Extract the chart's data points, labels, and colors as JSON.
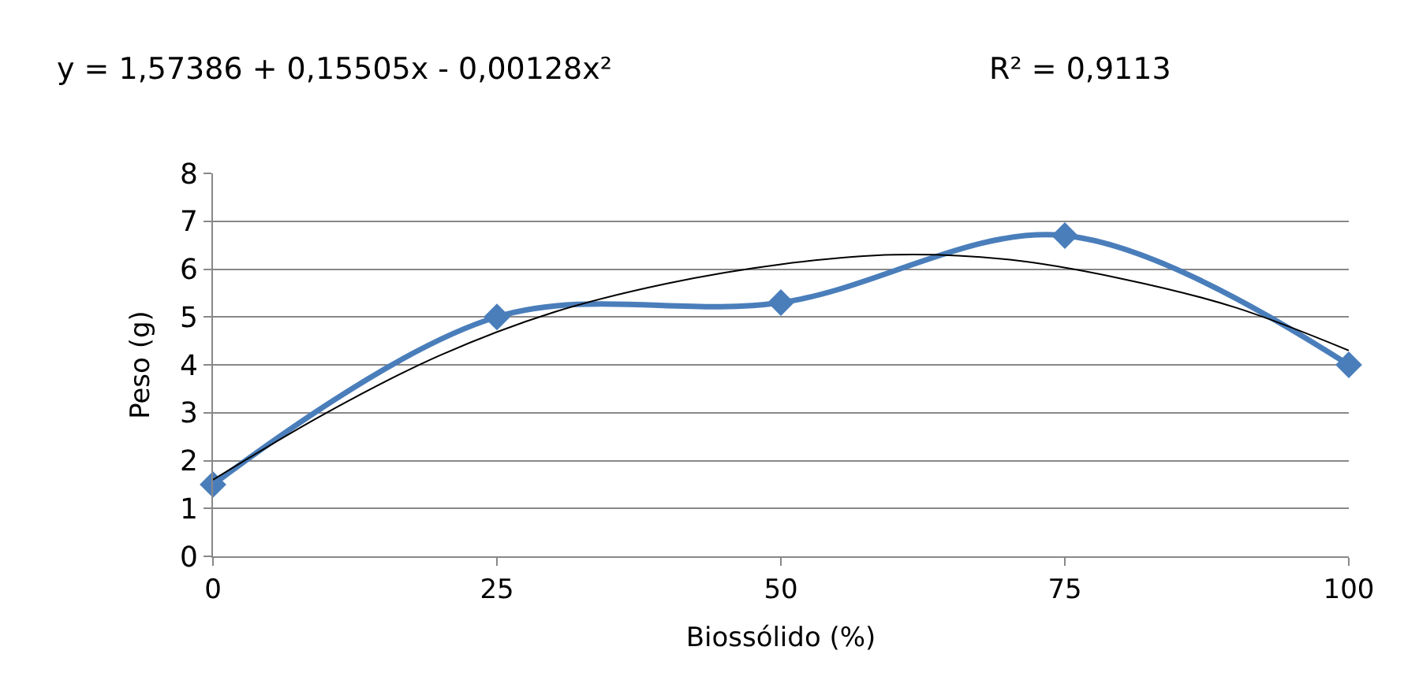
{
  "chart_data": {
    "type": "line",
    "xlabel": "Biossólido (%)",
    "ylabel": "Peso (g)",
    "annotations": [
      "y = 1,57386 + 0,15505x - 0,00128x²",
      "R² = 0,9113"
    ],
    "x": [
      0,
      25,
      50,
      75,
      100
    ],
    "xlim": [
      0,
      100
    ],
    "xticks": [
      0,
      25,
      50,
      75,
      100
    ],
    "ylim": [
      0,
      8
    ],
    "yticks": [
      0,
      1,
      2,
      3,
      4,
      5,
      6,
      7,
      8
    ],
    "grid": "y",
    "marker": "diamond",
    "line_style": "solid",
    "series": [
      {
        "color": "#4a7ebb",
        "values": [
          1.5,
          5.0,
          5.3,
          6.7,
          4.0
        ]
      },
      {
        "type": "line",
        "color": "#000000",
        "marker": "none",
        "x": [
          0,
          10,
          20,
          30,
          40,
          50,
          60,
          70,
          80,
          90,
          100
        ],
        "values": [
          1.6,
          3.0,
          4.2,
          5.1,
          5.7,
          6.1,
          6.3,
          6.2,
          5.8,
          5.2,
          4.3
        ]
      }
    ]
  }
}
